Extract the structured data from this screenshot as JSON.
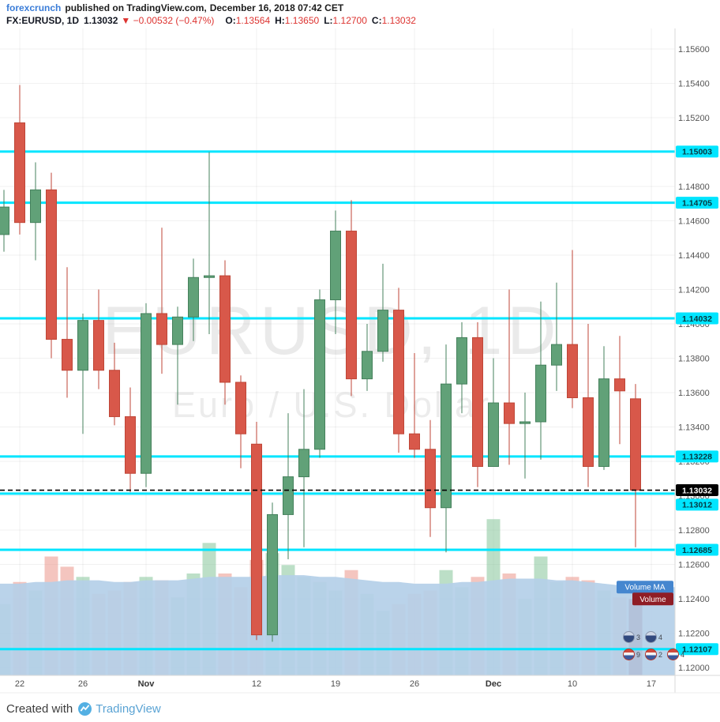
{
  "header": {
    "author": "forexcrunch",
    "published_prefix": "published on TradingView.com,",
    "datetime": "December 16, 2018 07:42 CET"
  },
  "symbol_bar": {
    "symbol": "FX:EURUSD, 1D",
    "last": "1.13032",
    "arrow": "▼",
    "change": "−0.00532 (−0.47%)",
    "o_label": "O:",
    "o": "1.13564",
    "h_label": "H:",
    "h": "1.13650",
    "l_label": "L:",
    "l": "1.12700",
    "c_label": "C:",
    "c": "1.13032"
  },
  "reactions": {
    "row1": [
      {
        "count": "3"
      },
      {
        "count": "4"
      }
    ],
    "row2": [
      {
        "count": "9"
      },
      {
        "count": "2"
      },
      {
        "count": "4"
      }
    ]
  },
  "footer": {
    "created_with": "Created with",
    "brand": "TradingView"
  },
  "colors": {
    "up": "#61a178",
    "up_border": "#45815c",
    "down": "#d8584a",
    "down_border": "#bf4637",
    "level": "#00e5ff",
    "level_text": "#063840",
    "last_badge_bg": "#000000",
    "last_badge_text": "#ffffff",
    "grid": "rgba(0,0,0,0.055)",
    "axis_text": "#555555",
    "vol_up": "rgba(133,196,153,0.55)",
    "vol_down": "rgba(234,140,128,0.5)",
    "vol_last": "#a3293a",
    "volume_ma_fill": "rgba(180,207,232,0.92)",
    "vol_ma_badge": "#4586cf",
    "vol_badge": "#8f1d25"
  },
  "chart_data": {
    "type": "candlestick",
    "title": "EURUSD, 1D",
    "subtitle": "Euro / U.S. Dollar",
    "y_axis": {
      "min": 1.1195,
      "max": 1.1572,
      "tick_step": 0.002,
      "ticks": [
        "1.15600",
        "1.15400",
        "1.15200",
        "1.15000",
        "1.14800",
        "1.14600",
        "1.14400",
        "1.14200",
        "1.14000",
        "1.13800",
        "1.13600",
        "1.13400",
        "1.13200",
        "1.13000",
        "1.12800",
        "1.12600",
        "1.12400",
        "1.12200",
        "1.12000"
      ]
    },
    "x_axis": {
      "labels": [
        {
          "text": "22",
          "index": 1
        },
        {
          "text": "26",
          "index": 5
        },
        {
          "text": "Nov",
          "index": 9,
          "major": true
        },
        {
          "text": "12",
          "index": 16
        },
        {
          "text": "19",
          "index": 21
        },
        {
          "text": "26",
          "index": 26
        },
        {
          "text": "Dec",
          "index": 31,
          "major": true
        },
        {
          "text": "10",
          "index": 36
        },
        {
          "text": "17",
          "index": 41
        }
      ]
    },
    "levels": [
      {
        "price": 1.15003,
        "label": "1.15003"
      },
      {
        "price": 1.14705,
        "label": "1.14705"
      },
      {
        "price": 1.14032,
        "label": "1.14032"
      },
      {
        "price": 1.13228,
        "label": "1.13228"
      },
      {
        "price": 1.13012,
        "label": "1.13012",
        "label_dy": 14
      },
      {
        "price": 1.12685,
        "label": "1.12685"
      },
      {
        "price": 1.12107,
        "label": "1.12107"
      }
    ],
    "last_price": {
      "value": 1.13032,
      "label": "1.13032"
    },
    "indicator_labels": {
      "ma": "Volume MA",
      "volume": "Volume"
    },
    "candles_columns": [
      "date",
      "open",
      "high",
      "low",
      "close",
      "volume"
    ],
    "candles": [
      [
        "Oct 19",
        1.1452,
        1.1478,
        1.1442,
        1.1468,
        42
      ],
      [
        "Oct 22",
        1.1517,
        1.1539,
        1.1452,
        1.1459,
        55
      ],
      [
        "Oct 23",
        1.1459,
        1.1494,
        1.1437,
        1.1478,
        50
      ],
      [
        "Oct 24",
        1.1478,
        1.1488,
        1.138,
        1.1391,
        70
      ],
      [
        "Oct 25",
        1.1391,
        1.1433,
        1.1357,
        1.1373,
        64
      ],
      [
        "Oct 26",
        1.1373,
        1.1406,
        1.1336,
        1.1402,
        58
      ],
      [
        "Oct 29",
        1.1402,
        1.142,
        1.1362,
        1.1373,
        48
      ],
      [
        "Oct 30",
        1.1373,
        1.1389,
        1.1341,
        1.1346,
        50
      ],
      [
        "Oct 31",
        1.1346,
        1.1363,
        1.1302,
        1.1313,
        55
      ],
      [
        "Nov 1",
        1.1313,
        1.1412,
        1.1305,
        1.1406,
        58
      ],
      [
        "Nov 2",
        1.1406,
        1.1456,
        1.1371,
        1.1388,
        56
      ],
      [
        "Nov 5",
        1.1388,
        1.141,
        1.1353,
        1.1404,
        46
      ],
      [
        "Nov 6",
        1.1404,
        1.1438,
        1.139,
        1.1427,
        60
      ],
      [
        "Nov 7",
        1.1427,
        1.15,
        1.1394,
        1.1428,
        78
      ],
      [
        "Nov 8",
        1.1428,
        1.1437,
        1.1353,
        1.1366,
        60
      ],
      [
        "Nov 9",
        1.1366,
        1.137,
        1.1316,
        1.1336,
        52
      ],
      [
        "Nov 12",
        1.133,
        1.1343,
        1.1216,
        1.1219,
        68
      ],
      [
        "Nov 13",
        1.1219,
        1.1296,
        1.1215,
        1.1289,
        72
      ],
      [
        "Nov 14",
        1.1289,
        1.1348,
        1.1263,
        1.1311,
        65
      ],
      [
        "Nov 15",
        1.1311,
        1.1362,
        1.127,
        1.1327,
        58
      ],
      [
        "Nov 16",
        1.1327,
        1.142,
        1.1322,
        1.1414,
        55
      ],
      [
        "Nov 19",
        1.1414,
        1.1466,
        1.1394,
        1.1454,
        50
      ],
      [
        "Nov 20",
        1.1454,
        1.1472,
        1.1358,
        1.1368,
        62
      ],
      [
        "Nov 21",
        1.1368,
        1.14,
        1.1361,
        1.1384,
        48
      ],
      [
        "Nov 22",
        1.1384,
        1.1435,
        1.1378,
        1.1408,
        38
      ],
      [
        "Nov 23",
        1.1408,
        1.1421,
        1.1325,
        1.1336,
        42
      ],
      [
        "Nov 26",
        1.1336,
        1.1383,
        1.1322,
        1.1327,
        48
      ],
      [
        "Nov 27",
        1.1327,
        1.1344,
        1.1276,
        1.1293,
        50
      ],
      [
        "Nov 28",
        1.1293,
        1.1388,
        1.1267,
        1.1365,
        62
      ],
      [
        "Nov 29",
        1.1365,
        1.1401,
        1.1348,
        1.1392,
        52
      ],
      [
        "Nov 30",
        1.1392,
        1.1401,
        1.1305,
        1.1317,
        58
      ],
      [
        "Dec 3",
        1.1317,
        1.138,
        1.1317,
        1.1354,
        92
      ],
      [
        "Dec 4",
        1.1354,
        1.142,
        1.1318,
        1.1342,
        60
      ],
      [
        "Dec 5",
        1.1342,
        1.136,
        1.131,
        1.1343,
        45
      ],
      [
        "Dec 6",
        1.1343,
        1.1413,
        1.1321,
        1.1376,
        70
      ],
      [
        "Dec 7",
        1.1376,
        1.1424,
        1.1361,
        1.1388,
        55
      ],
      [
        "Dec 10",
        1.1388,
        1.1443,
        1.1351,
        1.1357,
        58
      ],
      [
        "Dec 11",
        1.1357,
        1.14,
        1.1305,
        1.1317,
        56
      ],
      [
        "Dec 12",
        1.1317,
        1.1387,
        1.1315,
        1.1368,
        50
      ],
      [
        "Dec 13",
        1.1368,
        1.1393,
        1.133,
        1.1361,
        46
      ],
      [
        "Dec 14",
        1.13564,
        1.1365,
        1.127,
        1.13032,
        45
      ]
    ],
    "volume_ma": [
      54,
      54,
      55,
      55,
      56,
      56,
      56,
      55,
      55,
      56,
      56,
      56,
      57,
      58,
      58,
      58,
      58,
      59,
      59,
      59,
      58,
      58,
      57,
      56,
      55,
      55,
      54,
      54,
      54,
      55,
      55,
      56,
      57,
      57,
      57,
      56,
      56,
      55,
      54,
      53,
      52
    ]
  }
}
